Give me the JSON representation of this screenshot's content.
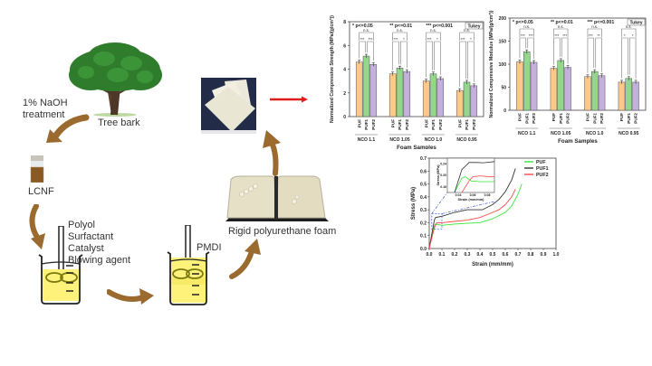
{
  "colors": {
    "arrow_brown": "#9b6a2f",
    "red_arrow": "#e31b1b",
    "bar_puf": "#fdc98a",
    "bar_puf1": "#93d68c",
    "bar_puf2": "#c4b0dc",
    "line_puf": "#39e639",
    "line_puf1": "#333333",
    "line_puf2": "#ff4a4a",
    "inset_dash": "#3b5bdb",
    "liquid": "#fff27a"
  },
  "labels": {
    "naoh_line1": "1% NaOH",
    "naoh_line2": "treatment",
    "tree": "Tree bark",
    "lcnf": "LCNF",
    "additives": [
      "Polyol",
      "Surfactant",
      "Catalyst",
      "Blowing agent"
    ],
    "pmdi": "PMDI",
    "foam": "Rigid polyurethane foam"
  },
  "chart_data": [
    {
      "type": "bar",
      "title": "",
      "xlabel": "Foam Samples",
      "ylabel": "Normalized Compressive Strength (MPa/(g/cm³))",
      "ylim": [
        0,
        8
      ],
      "yticks": [
        0,
        2,
        4,
        6,
        8
      ],
      "groups": [
        "NCO 1.1",
        "NCO 1.05",
        "NCO 1.0",
        "NCO 0.95"
      ],
      "categories": [
        "PUF",
        "PUF1",
        "PUF2"
      ],
      "series": [
        {
          "name": "PUF",
          "values": [
            4.6,
            3.6,
            3.0,
            2.2
          ]
        },
        {
          "name": "PUF1",
          "values": [
            5.1,
            4.1,
            3.6,
            2.9
          ]
        },
        {
          "name": "PUF2",
          "values": [
            4.4,
            3.8,
            3.2,
            2.6
          ]
        }
      ],
      "significance_legend": [
        "* p<=0.05",
        "** p<=0.01",
        "*** p<=0.001",
        "Tukey"
      ],
      "significance": [
        {
          "group": "NCO 1.1",
          "PUF_PUF1": "***",
          "PUF1_PUF2": "***",
          "PUF_PUF2": "n.s."
        },
        {
          "group": "NCO 1.05",
          "PUF_PUF1": "***",
          "PUF1_PUF2": "*",
          "PUF_PUF2": "n.s."
        },
        {
          "group": "NCO 1.0",
          "PUF_PUF1": "***",
          "PUF1_PUF2": "*",
          "PUF_PUF2": "n.s."
        },
        {
          "group": "NCO 0.95",
          "PUF_PUF1": "***",
          "PUF1_PUF2": "*",
          "PUF_PUF2": "n.s."
        }
      ]
    },
    {
      "type": "bar",
      "title": "",
      "xlabel": "Foam Samples",
      "ylabel": "Normalized Compressive Modulus (MPa/(g/cm³))",
      "ylim": [
        0,
        200
      ],
      "yticks": [
        0,
        50,
        100,
        150,
        200
      ],
      "groups": [
        "NCO 1.1",
        "NCO 1.05",
        "NCO 1.0",
        "NCO 0.95"
      ],
      "categories": [
        "PUF",
        "PUF1",
        "PUF2"
      ],
      "series": [
        {
          "name": "PUF",
          "values": [
            105,
            91,
            73,
            61
          ]
        },
        {
          "name": "PUF1",
          "values": [
            127,
            108,
            84,
            69
          ]
        },
        {
          "name": "PUF2",
          "values": [
            104,
            93,
            75,
            61
          ]
        }
      ],
      "significance_legend": [
        "* p<=0.05",
        "** p<=0.01",
        "*** p<=0.001",
        "Tukey"
      ],
      "significance": [
        {
          "group": "NCO 1.1",
          "PUF_PUF1": "***",
          "PUF1_PUF2": "***",
          "PUF_PUF2": "n.s."
        },
        {
          "group": "NCO 1.05",
          "PUF_PUF1": "***",
          "PUF1_PUF2": "***",
          "PUF_PUF2": "n.s."
        },
        {
          "group": "NCO 1.0",
          "PUF_PUF1": "***",
          "PUF1_PUF2": "**",
          "PUF_PUF2": "n.s."
        },
        {
          "group": "NCO 0.95",
          "PUF_PUF1": "*",
          "PUF1_PUF2": "*",
          "PUF_PUF2": "n.s."
        }
      ]
    },
    {
      "type": "line",
      "title": "",
      "xlabel": "Strain (mm/mm)",
      "ylabel": "Stress (MPa)",
      "xlim": [
        0,
        1.0
      ],
      "ylim": [
        0,
        0.7
      ],
      "xticks": [
        0.0,
        0.1,
        0.2,
        0.3,
        0.4,
        0.5,
        0.6,
        0.7,
        0.8,
        0.9,
        1.0
      ],
      "yticks": [
        0.0,
        0.1,
        0.2,
        0.3,
        0.4,
        0.5,
        0.6,
        0.7
      ],
      "legend": [
        "PUF",
        "PUF1",
        "PUF2"
      ],
      "legend_position": "upper right",
      "series": [
        {
          "name": "PUF",
          "x": [
            0,
            0.04,
            0.05,
            0.1,
            0.2,
            0.3,
            0.4,
            0.5,
            0.6,
            0.65,
            0.7,
            0.73
          ],
          "y": [
            0,
            0.18,
            0.19,
            0.18,
            0.19,
            0.195,
            0.2,
            0.23,
            0.28,
            0.33,
            0.42,
            0.5
          ]
        },
        {
          "name": "PUF1",
          "x": [
            0,
            0.04,
            0.05,
            0.1,
            0.2,
            0.3,
            0.4,
            0.42,
            0.5,
            0.55,
            0.6,
            0.65,
            0.68
          ],
          "y": [
            0,
            0.22,
            0.24,
            0.25,
            0.28,
            0.3,
            0.3,
            0.3,
            0.34,
            0.38,
            0.44,
            0.53,
            0.62
          ]
        },
        {
          "name": "PUF2",
          "x": [
            0,
            0.04,
            0.06,
            0.1,
            0.2,
            0.3,
            0.4,
            0.5,
            0.55,
            0.6,
            0.65,
            0.68
          ],
          "y": [
            0,
            0.16,
            0.2,
            0.2,
            0.21,
            0.22,
            0.24,
            0.28,
            0.3,
            0.34,
            0.4,
            0.46
          ]
        }
      ],
      "inset": {
        "xlabel": "Strain (mm/mm)",
        "ylabel": "Stress (MPa)",
        "xticks": [
          0.04,
          0.06,
          0.08
        ],
        "yticks": [
          0.16,
          0.2,
          0.24
        ],
        "xlim": [
          0.025,
          0.09
        ],
        "ylim": [
          0.14,
          0.26
        ]
      }
    }
  ]
}
